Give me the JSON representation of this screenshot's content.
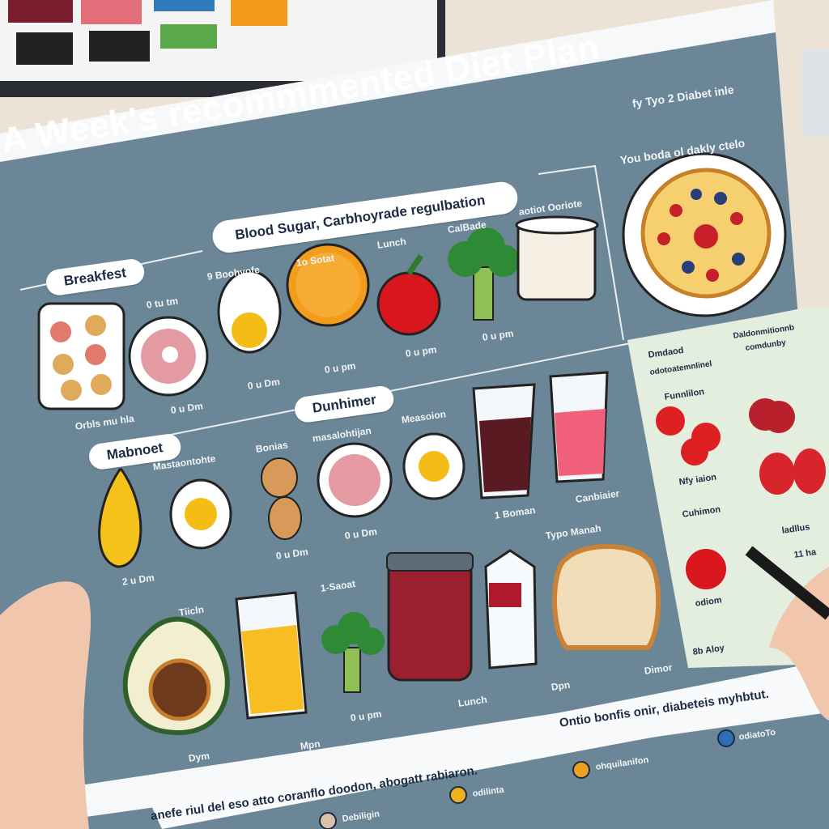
{
  "poster": {
    "title": "A Week's recommmented Diet   Plan",
    "subtitle_right": "fy Tyo 2 Diabet inle",
    "note_right": "You boda ol dakly ctelo",
    "banner": "Blood Sugar, Carbhoyrade regulbation",
    "sections": {
      "breakfast": "Breakfest",
      "dinner": "Dunhimer",
      "snack": "Mabnoet"
    },
    "labels": {
      "row1": [
        "9 Boohvofe",
        "1o Sotat",
        "Lunch",
        "CalBade",
        "aotiot Ooriote"
      ],
      "row1_times": [
        "0 tu tm",
        "0 u Dm",
        "0 u Dm",
        "0 u pm",
        "0 u pm",
        "0 u pm",
        "Orbls mu hla"
      ],
      "row2": [
        "Mastaontohte",
        "Bonias",
        "masalohtijan",
        "Measoion",
        "Canbiaier",
        "1 Boman",
        "Typo Manah"
      ],
      "row2_times": [
        "0 u Dm",
        "0 u Dm",
        "2 u Dm"
      ],
      "row3": [
        "Tiicln",
        "1-Saoat",
        "Lunch",
        "Dpn",
        "Dimor",
        "Mpn",
        "Dym",
        "0 u pm"
      ]
    },
    "side_panel": {
      "items": [
        "Dmdaod",
        "odotoatemnlinel",
        "Daldonmitionnb",
        "comdunby",
        "Funnlilon",
        "Nfy iaion",
        "Cuhimon",
        "ladllus",
        "11 ha",
        "odiom",
        "8b Aloy"
      ]
    },
    "footer": {
      "line1": "Ontio bonfis onir, diabeteis myhbtut.",
      "line2": "anefe riul del eso atto coranflo doodon, abogatt rabiaron.",
      "legend": [
        {
          "label": "odiatoTo",
          "color": "#2f6fb3"
        },
        {
          "label": "ohquilanifon",
          "color": "#f0a020"
        },
        {
          "label": "odilinta",
          "color": "#f2b01e"
        },
        {
          "label": "Debiligin",
          "color": "#d9c2a8"
        }
      ]
    },
    "palette_colors": [
      "#7a1e2e",
      "#e36f7a",
      "#2f7ab8",
      "#f29a1a",
      "#5aa84a",
      "#222222"
    ],
    "colors": {
      "poster": "#6b8696",
      "panel": "#e4eedf",
      "accent_text": "#1c2a44"
    }
  }
}
